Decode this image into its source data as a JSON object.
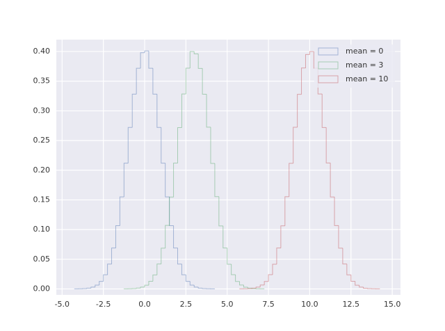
{
  "chart_data": {
    "type": "histogram",
    "xlim": [
      -5.35,
      15.5
    ],
    "ylim": [
      -0.01,
      0.42
    ],
    "grid": true,
    "legend": "upper right",
    "xticks": [
      {
        "value": -5,
        "label": "-5.0"
      },
      {
        "value": -2.5,
        "label": "-2.5"
      },
      {
        "value": 0,
        "label": "0.0"
      },
      2.5,
      {
        "value": 5,
        "label": "5.0"
      },
      7.5,
      {
        "value": 10,
        "label": "10.0"
      },
      12.5,
      {
        "value": 15,
        "label": "15.0"
      }
    ],
    "yticks": [
      {
        "value": 0,
        "label": "0.00"
      },
      {
        "value": 0.05,
        "label": "0.05"
      },
      {
        "value": 0.1,
        "label": "0.10"
      },
      {
        "value": 0.15,
        "label": "0.15"
      },
      {
        "value": 0.2,
        "label": "0.20"
      },
      {
        "value": 0.25,
        "label": "0.25"
      },
      {
        "value": 0.3,
        "label": "0.30"
      },
      {
        "value": 0.35,
        "label": "0.35"
      },
      {
        "value": 0.4,
        "label": "0.40"
      }
    ],
    "series": [
      {
        "name": "mean = 0",
        "color": "#4c72b0",
        "bins": [
          -4.25,
          -4,
          -3.75,
          -3.5,
          -3.25,
          -3,
          -2.75,
          -2.5,
          -2.25,
          -2,
          -1.75,
          -1.5,
          -1.25,
          -1,
          -0.75,
          -0.5,
          -0.25,
          0,
          0.25,
          0.5,
          0.75,
          1,
          1.25,
          1.5,
          1.75,
          2,
          2.25,
          2.5,
          2.75,
          3,
          3.25,
          3.5,
          3.75,
          4,
          4.25
        ],
        "values": [
          0.0001,
          0.0002,
          0.0006,
          0.0013,
          0.003,
          0.0064,
          0.0127,
          0.0238,
          0.0418,
          0.0689,
          0.1066,
          0.1551,
          0.2119,
          0.2721,
          0.3282,
          0.3718,
          0.398,
          0.401,
          0.3718,
          0.3282,
          0.2721,
          0.2119,
          0.1551,
          0.1066,
          0.0689,
          0.0418,
          0.0238,
          0.0127,
          0.0064,
          0.003,
          0.0013,
          0.0006,
          0.0002,
          0.0001
        ]
      },
      {
        "name": "mean = 3",
        "color": "#55a868",
        "bins": [
          -1.25,
          -1,
          -0.75,
          -0.5,
          -0.25,
          0,
          0.25,
          0.5,
          0.75,
          1,
          1.25,
          1.5,
          1.75,
          2,
          2.25,
          2.5,
          2.75,
          3,
          3.25,
          3.5,
          3.75,
          4,
          4.25,
          4.5,
          4.75,
          5,
          5.25,
          5.5,
          5.75,
          6,
          6.25,
          6.5,
          6.75,
          7,
          7.25
        ],
        "values": [
          0.0001,
          0.0002,
          0.0006,
          0.0014,
          0.003,
          0.0063,
          0.0128,
          0.0236,
          0.042,
          0.0686,
          0.107,
          0.1548,
          0.212,
          0.2718,
          0.3285,
          0.372,
          0.4,
          0.396,
          0.3715,
          0.328,
          0.2725,
          0.2115,
          0.1555,
          0.1062,
          0.069,
          0.0415,
          0.024,
          0.0126,
          0.0065,
          0.0029,
          0.0013,
          0.0006,
          0.0002,
          0.0001
        ]
      },
      {
        "name": "mean = 10",
        "color": "#c44e52",
        "bins": [
          5.75,
          6,
          6.25,
          6.5,
          6.75,
          7,
          7.25,
          7.5,
          7.75,
          8,
          8.25,
          8.5,
          8.75,
          9,
          9.25,
          9.5,
          9.75,
          10,
          10.25,
          10.5,
          10.75,
          11,
          11.25,
          11.5,
          11.75,
          12,
          12.25,
          12.5,
          12.75,
          13,
          13.25,
          13.5,
          13.75,
          14,
          14.25
        ],
        "values": [
          0.0001,
          0.0002,
          0.0005,
          0.0013,
          0.0031,
          0.0065,
          0.0126,
          0.024,
          0.0416,
          0.069,
          0.1063,
          0.1554,
          0.2116,
          0.2724,
          0.3279,
          0.3722,
          0.395,
          0.4,
          0.372,
          0.3284,
          0.2719,
          0.2122,
          0.1549,
          0.1068,
          0.0687,
          0.042,
          0.0237,
          0.0128,
          0.0063,
          0.0031,
          0.0012,
          0.0006,
          0.0002,
          0.0001
        ]
      }
    ]
  }
}
